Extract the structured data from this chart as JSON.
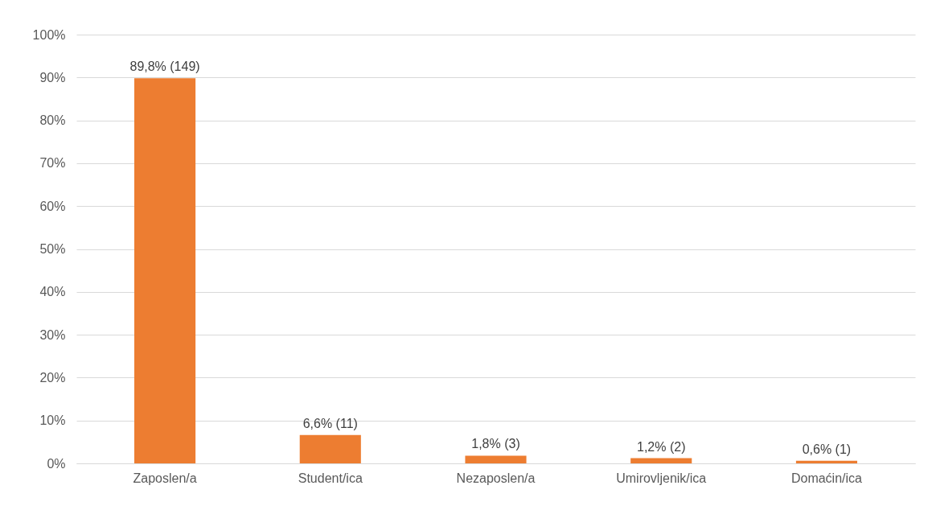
{
  "chart_data": {
    "type": "bar",
    "categories": [
      "Zaposlen/a",
      "Student/ica",
      "Nezaposlen/a",
      "Umirovljenik/ica",
      "Domaćin/ica"
    ],
    "values": [
      89.8,
      6.6,
      1.8,
      1.2,
      0.6
    ],
    "value_labels": [
      "89,8% (149)",
      "6,6% (11)",
      "1,8% (3)",
      "1,2% (2)",
      "0,6% (1)"
    ],
    "color": "#ed7d31",
    "ylim": [
      0,
      100
    ],
    "yticks": [
      {
        "value": 0,
        "label": "0%"
      },
      {
        "value": 10,
        "label": "10%"
      },
      {
        "value": 20,
        "label": "20%"
      },
      {
        "value": 30,
        "label": "30%"
      },
      {
        "value": 40,
        "label": "40%"
      },
      {
        "value": 50,
        "label": "50%"
      },
      {
        "value": 60,
        "label": "60%"
      },
      {
        "value": 70,
        "label": "70%"
      },
      {
        "value": 80,
        "label": "80%"
      },
      {
        "value": 90,
        "label": "90%"
      },
      {
        "value": 100,
        "label": "100%"
      }
    ],
    "grid": true
  }
}
